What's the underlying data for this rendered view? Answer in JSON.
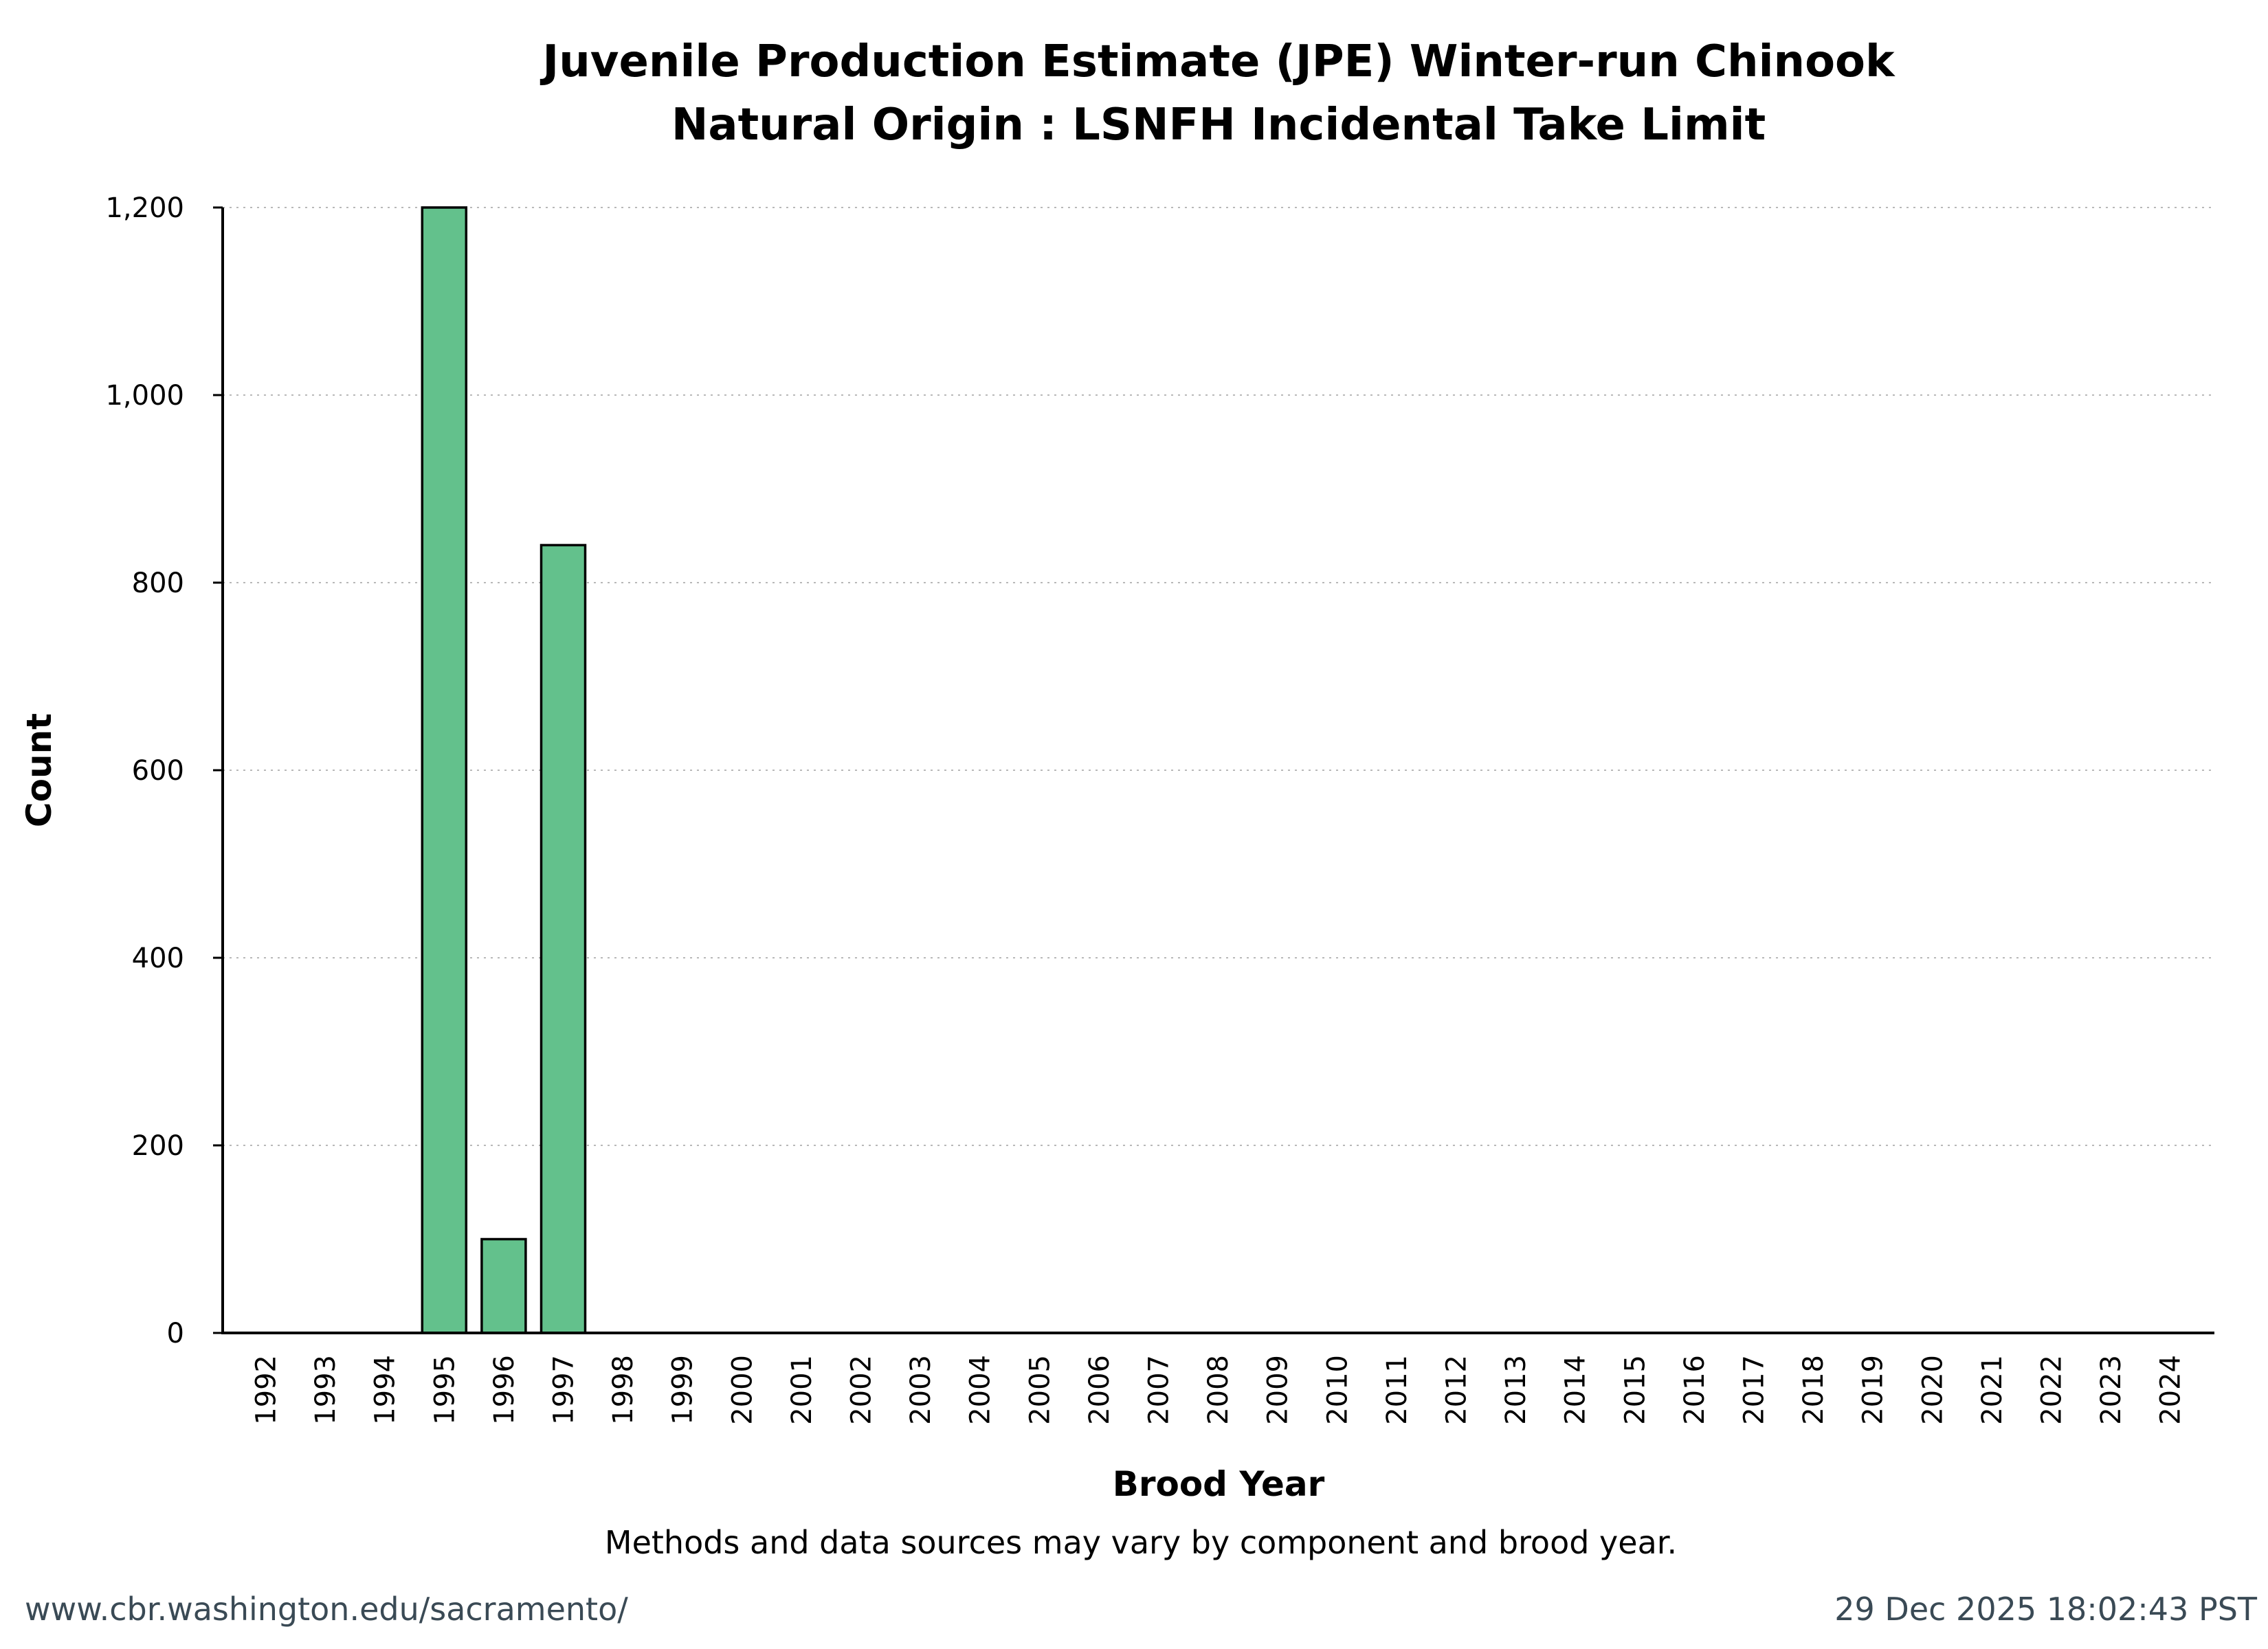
{
  "chart_data": {
    "type": "bar",
    "title": [
      "Juvenile Production Estimate (JPE) Winter-run Chinook",
      "Natural Origin : LSNFH Incidental Take Limit"
    ],
    "xlabel": "Brood Year",
    "ylabel": "Count",
    "note": "Methods and data sources may vary by component and brood year.",
    "categories": [
      "1992",
      "1993",
      "1994",
      "1995",
      "1996",
      "1997",
      "1998",
      "1999",
      "2000",
      "2001",
      "2002",
      "2003",
      "2004",
      "2005",
      "2006",
      "2007",
      "2008",
      "2009",
      "2010",
      "2011",
      "2012",
      "2013",
      "2014",
      "2015",
      "2016",
      "2017",
      "2018",
      "2019",
      "2020",
      "2021",
      "2022",
      "2023",
      "2024"
    ],
    "values": [
      0,
      0,
      0,
      1200,
      100,
      840,
      0,
      0,
      0,
      0,
      0,
      0,
      0,
      0,
      0,
      0,
      0,
      0,
      0,
      0,
      0,
      0,
      0,
      0,
      0,
      0,
      0,
      0,
      0,
      0,
      0,
      0,
      0
    ],
    "ylim": [
      0,
      1200
    ],
    "yticks": [
      0,
      200,
      400,
      600,
      800,
      1000,
      1200
    ],
    "ytick_labels": [
      "0",
      "200",
      "400",
      "600",
      "800",
      "1,000",
      "1,200"
    ],
    "grid": true,
    "bar_color": "#63c18c"
  },
  "footer": {
    "url": "www.cbr.washington.edu/sacramento/",
    "timestamp": "29 Dec 2025 18:02:43 PST"
  }
}
